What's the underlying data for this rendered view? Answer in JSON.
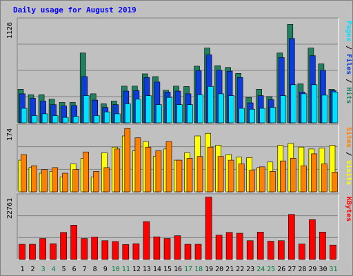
{
  "chart_data": {
    "type": "bar",
    "title": "Daily usage for August 2019",
    "categories": [
      "1",
      "2",
      "3",
      "4",
      "5",
      "6",
      "7",
      "8",
      "9",
      "10",
      "11",
      "12",
      "13",
      "14",
      "15",
      "16",
      "17",
      "18",
      "19",
      "20",
      "21",
      "22",
      "23",
      "24",
      "25",
      "26",
      "27",
      "28",
      "29",
      "30",
      "31"
    ],
    "weekend_days": [
      "3",
      "4",
      "10",
      "11",
      "17",
      "18",
      "24",
      "25",
      "31"
    ],
    "panels": [
      {
        "name": "hits-files-pages",
        "ymax_label": "1126",
        "ymax": 1126,
        "axis_label": [
          "Pages",
          "Files",
          "Hits"
        ],
        "series": [
          {
            "name": "Hits",
            "color": "#208060",
            "values": [
              370,
              310,
              310,
              260,
              225,
              225,
              770,
              320,
              210,
              240,
              405,
              405,
              540,
              510,
              360,
              405,
              400,
              625,
              825,
              630,
              610,
              545,
              280,
              370,
              290,
              770,
              1085,
              430,
              825,
              650,
              370
            ]
          },
          {
            "name": "Files",
            "color": "#0c3cdc",
            "values": [
              320,
              270,
              240,
              200,
              185,
              190,
              510,
              250,
              170,
              200,
              350,
              355,
              500,
              450,
              340,
              350,
              320,
              575,
              750,
              580,
              570,
              500,
              220,
              300,
              255,
              720,
              930,
              340,
              740,
              580,
              355
            ]
          },
          {
            "name": "Pages",
            "color": "#00e0ff",
            "values": [
              160,
              80,
              100,
              80,
              60,
              70,
              300,
              80,
              120,
              100,
              210,
              260,
              300,
              200,
              280,
              200,
              200,
              310,
              400,
              320,
              300,
              160,
              150,
              160,
              170,
              300,
              420,
              320,
              420,
              305,
              340
            ]
          }
        ]
      },
      {
        "name": "visits-sites",
        "ymax_label": "174",
        "ymax": 174,
        "axis_label": [
          "Sites",
          "Visits"
        ],
        "series": [
          {
            "name": "Visits",
            "color": "#ffff00",
            "values": [
              85,
              65,
              50,
              55,
              40,
              75,
              90,
              40,
              105,
              120,
              150,
              110,
              135,
              95,
              115,
              85,
              105,
              150,
              157,
              125,
              100,
              93,
              92,
              65,
              80,
              125,
              130,
              120,
              115,
              117,
              125
            ]
          },
          {
            "name": "Sites",
            "color": "#ff8000",
            "values": [
              100,
              70,
              60,
              65,
              50,
              60,
              107,
              55,
              65,
              115,
              170,
              145,
              120,
              110,
              135,
              85,
              90,
              95,
              120,
              95,
              85,
              75,
              58,
              67,
              55,
              83,
              90,
              70,
              102,
              75,
              53
            ]
          }
        ]
      },
      {
        "name": "kbytes",
        "ymax_label": "22761",
        "ymax": 22761,
        "axis_label": [
          "KBytes"
        ],
        "series": [
          {
            "name": "KBytes",
            "color": "#ff0000",
            "values": [
              5500,
              5500,
              7600,
              5700,
              9800,
              12400,
              7600,
              8100,
              6800,
              6500,
              5400,
              5700,
              13700,
              8200,
              7600,
              8600,
              5500,
              5500,
              22600,
              8800,
              9800,
              9500,
              6800,
              9900,
              6600,
              6800,
              16300,
              5600,
              14400,
              9900,
              5200
            ]
          }
        ]
      }
    ]
  },
  "colors": {
    "background": "#c0c0c0",
    "plot_background": "#c0c0c0",
    "title": "#0000ff",
    "ymax_label": "#000000",
    "weekday_label": "#000000",
    "weekend_label": "#008040"
  }
}
